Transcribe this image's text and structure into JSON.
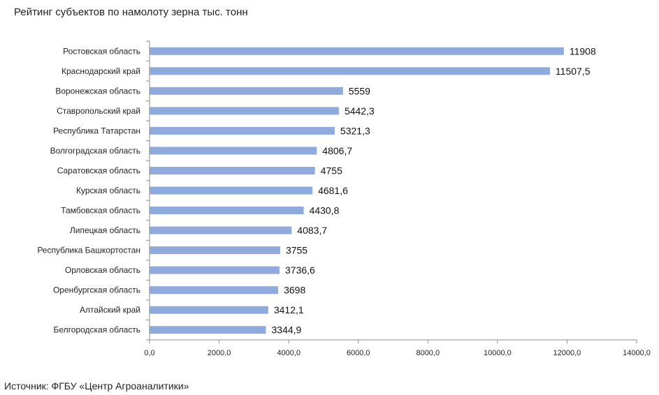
{
  "chart_data": {
    "type": "bar",
    "orientation": "horizontal",
    "title": "Рейтинг субъектов по намолоту зерна тыс. тонн",
    "categories": [
      "Ростовская область",
      "Краснодарский край",
      "Воронежская область",
      "Ставропольский край",
      "Республика Татарстан",
      "Волгоградская область",
      "Саратовская область",
      "Курская область",
      "Тамбовская область",
      "Липецкая область",
      "Республика Башкортостан",
      "Орловская область",
      "Оренбургская область",
      "Алтайский край",
      "Белгородская область"
    ],
    "values": [
      11908,
      11507.5,
      5559,
      5442.3,
      5321.3,
      4806.7,
      4755,
      4681.6,
      4430.8,
      4083.7,
      3755,
      3736.6,
      3698,
      3412.1,
      3344.9
    ],
    "value_labels": [
      "11908",
      "11507,5",
      "5559",
      "5442,3",
      "5321,3",
      "4806,7",
      "4755",
      "4681,6",
      "4430,8",
      "4083,7",
      "3755",
      "3736,6",
      "3698",
      "3412,1",
      "3344,9"
    ],
    "xlim": [
      0,
      14000
    ],
    "x_ticks": [
      0,
      2000,
      4000,
      6000,
      8000,
      10000,
      12000,
      14000
    ],
    "x_tick_labels": [
      "0,0",
      "2000,0",
      "4000,0",
      "6000,0",
      "8000,0",
      "10000,0",
      "12000,0",
      "14000,0"
    ],
    "grid": false,
    "legend": "none",
    "bar_color": "#8faadc",
    "xlabel": "",
    "ylabel": ""
  },
  "footer": {
    "source": "Источник: ФГБУ «Центр Агроаналитики»"
  }
}
